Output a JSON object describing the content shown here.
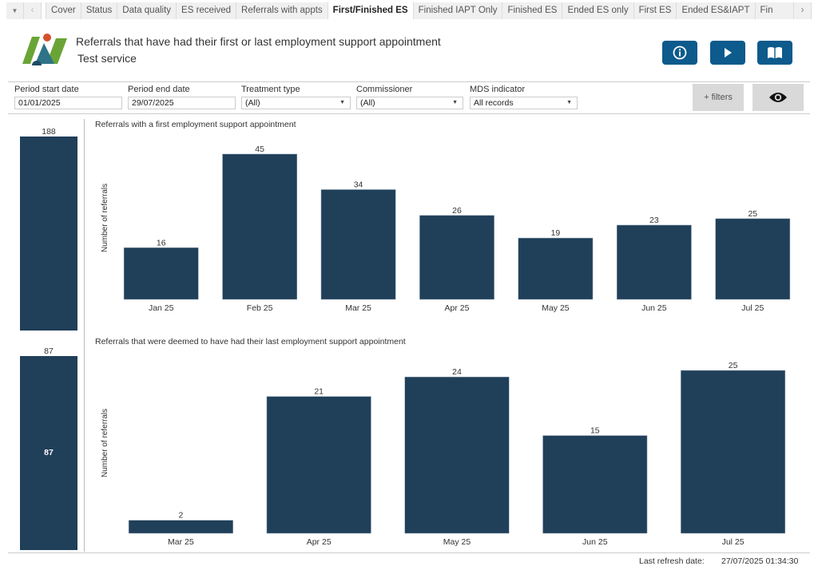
{
  "tabs": {
    "menu_icon": "dropdown-caret-icon",
    "prev_icon": "chevron-left-icon",
    "next_icon": "chevron-right-icon",
    "items": [
      {
        "label": "Cover",
        "active": false
      },
      {
        "label": "Status",
        "active": false
      },
      {
        "label": "Data quality",
        "active": false
      },
      {
        "label": "ES received",
        "active": false
      },
      {
        "label": "Referrals with appts",
        "active": false
      },
      {
        "label": "First/Finished ES",
        "active": true
      },
      {
        "label": "Finished IAPT Only",
        "active": false
      },
      {
        "label": "Finished ES",
        "active": false
      },
      {
        "label": "Ended ES only",
        "active": false
      },
      {
        "label": "First ES",
        "active": false
      },
      {
        "label": "Ended ES&IAPT",
        "active": false
      },
      {
        "label": "Fin",
        "active": false
      }
    ]
  },
  "header": {
    "title": "Referrals that have had their first or last employment support appointment",
    "subtitle": "Test service",
    "buttons": [
      {
        "name": "info",
        "icon": "info-icon"
      },
      {
        "name": "play",
        "icon": "play-icon"
      },
      {
        "name": "guide",
        "icon": "book-icon"
      }
    ],
    "button_color": "#0d5a8c"
  },
  "filters": {
    "period_start": {
      "label": "Period start date",
      "value": "01/01/2025"
    },
    "period_end": {
      "label": "Period end date",
      "value": "29/07/2025"
    },
    "treatment_type": {
      "label": "Treatment type",
      "value": "(All)"
    },
    "commissioner": {
      "label": "Commissioner",
      "value": "(All)"
    },
    "mds_indicator": {
      "label": "MDS indicator",
      "value": "All records"
    },
    "more_filters_label": "+ filters",
    "view_icon": "eye-icon"
  },
  "totals": {
    "first_total": 188,
    "last_total": 87,
    "last_total_inner": "87"
  },
  "bar_color": "#203f59",
  "chart_data": [
    {
      "type": "bar",
      "title": "Referrals with a first employment support appointment",
      "xlabel": "",
      "ylabel": "Number of referrals",
      "categories": [
        "Jan 25",
        "Feb 25",
        "Mar 25",
        "Apr 25",
        "May 25",
        "Jun 25",
        "Jul 25"
      ],
      "values": [
        16,
        45,
        34,
        26,
        19,
        23,
        25
      ],
      "ylim": [
        0,
        45
      ],
      "grid": false
    },
    {
      "type": "bar",
      "title": "Referrals that were deemed to have had their last employment support appointment",
      "xlabel": "",
      "ylabel": "Number of referrals",
      "categories": [
        "Mar 25",
        "Apr 25",
        "May 25",
        "Jun 25",
        "Jul 25"
      ],
      "values": [
        2,
        21,
        24,
        15,
        25
      ],
      "ylim": [
        0,
        25
      ],
      "grid": false
    }
  ],
  "footer": {
    "refresh_label": "Last refresh date:",
    "refresh_value": "27/07/2025 01:34:30"
  }
}
